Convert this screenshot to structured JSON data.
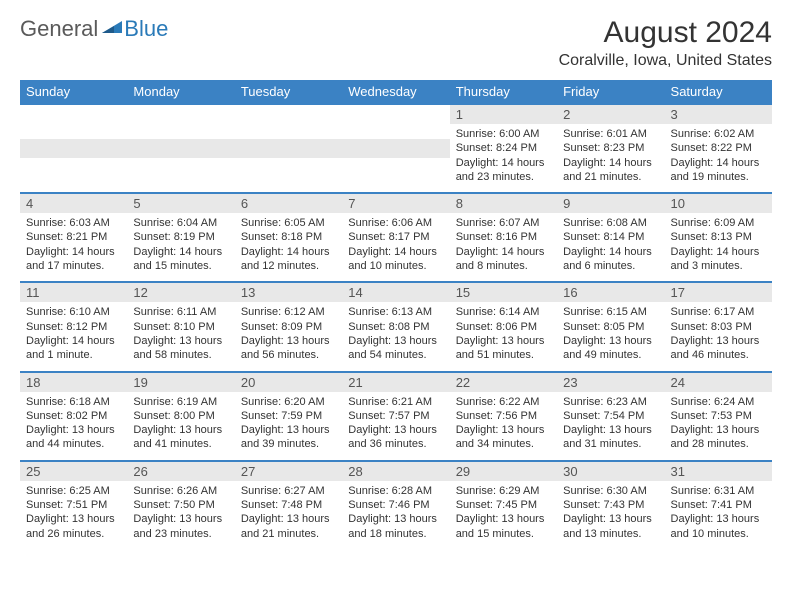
{
  "logo": {
    "general": "General",
    "blue": "Blue"
  },
  "title": "August 2024",
  "location": "Coralville, Iowa, United States",
  "weekdays": [
    "Sunday",
    "Monday",
    "Tuesday",
    "Wednesday",
    "Thursday",
    "Friday",
    "Saturday"
  ],
  "colors": {
    "header_bg": "#3b82c4",
    "header_text": "#ffffff",
    "daynum_bg": "#e8e8e8",
    "border": "#3b82c4",
    "logo_gray": "#5a5a5a",
    "logo_blue": "#2a7ab8"
  },
  "layout": {
    "first_weekday_index": 4,
    "days_in_month": 31,
    "font_family": "Arial",
    "title_fontsize": 30,
    "location_fontsize": 16,
    "weekday_fontsize": 13,
    "daynum_fontsize": 13,
    "content_fontsize": 11
  },
  "days": [
    {
      "n": "1",
      "sunrise": "Sunrise: 6:00 AM",
      "sunset": "Sunset: 8:24 PM",
      "d1": "Daylight: 14 hours",
      "d2": "and 23 minutes."
    },
    {
      "n": "2",
      "sunrise": "Sunrise: 6:01 AM",
      "sunset": "Sunset: 8:23 PM",
      "d1": "Daylight: 14 hours",
      "d2": "and 21 minutes."
    },
    {
      "n": "3",
      "sunrise": "Sunrise: 6:02 AM",
      "sunset": "Sunset: 8:22 PM",
      "d1": "Daylight: 14 hours",
      "d2": "and 19 minutes."
    },
    {
      "n": "4",
      "sunrise": "Sunrise: 6:03 AM",
      "sunset": "Sunset: 8:21 PM",
      "d1": "Daylight: 14 hours",
      "d2": "and 17 minutes."
    },
    {
      "n": "5",
      "sunrise": "Sunrise: 6:04 AM",
      "sunset": "Sunset: 8:19 PM",
      "d1": "Daylight: 14 hours",
      "d2": "and 15 minutes."
    },
    {
      "n": "6",
      "sunrise": "Sunrise: 6:05 AM",
      "sunset": "Sunset: 8:18 PM",
      "d1": "Daylight: 14 hours",
      "d2": "and 12 minutes."
    },
    {
      "n": "7",
      "sunrise": "Sunrise: 6:06 AM",
      "sunset": "Sunset: 8:17 PM",
      "d1": "Daylight: 14 hours",
      "d2": "and 10 minutes."
    },
    {
      "n": "8",
      "sunrise": "Sunrise: 6:07 AM",
      "sunset": "Sunset: 8:16 PM",
      "d1": "Daylight: 14 hours",
      "d2": "and 8 minutes."
    },
    {
      "n": "9",
      "sunrise": "Sunrise: 6:08 AM",
      "sunset": "Sunset: 8:14 PM",
      "d1": "Daylight: 14 hours",
      "d2": "and 6 minutes."
    },
    {
      "n": "10",
      "sunrise": "Sunrise: 6:09 AM",
      "sunset": "Sunset: 8:13 PM",
      "d1": "Daylight: 14 hours",
      "d2": "and 3 minutes."
    },
    {
      "n": "11",
      "sunrise": "Sunrise: 6:10 AM",
      "sunset": "Sunset: 8:12 PM",
      "d1": "Daylight: 14 hours",
      "d2": "and 1 minute."
    },
    {
      "n": "12",
      "sunrise": "Sunrise: 6:11 AM",
      "sunset": "Sunset: 8:10 PM",
      "d1": "Daylight: 13 hours",
      "d2": "and 58 minutes."
    },
    {
      "n": "13",
      "sunrise": "Sunrise: 6:12 AM",
      "sunset": "Sunset: 8:09 PM",
      "d1": "Daylight: 13 hours",
      "d2": "and 56 minutes."
    },
    {
      "n": "14",
      "sunrise": "Sunrise: 6:13 AM",
      "sunset": "Sunset: 8:08 PM",
      "d1": "Daylight: 13 hours",
      "d2": "and 54 minutes."
    },
    {
      "n": "15",
      "sunrise": "Sunrise: 6:14 AM",
      "sunset": "Sunset: 8:06 PM",
      "d1": "Daylight: 13 hours",
      "d2": "and 51 minutes."
    },
    {
      "n": "16",
      "sunrise": "Sunrise: 6:15 AM",
      "sunset": "Sunset: 8:05 PM",
      "d1": "Daylight: 13 hours",
      "d2": "and 49 minutes."
    },
    {
      "n": "17",
      "sunrise": "Sunrise: 6:17 AM",
      "sunset": "Sunset: 8:03 PM",
      "d1": "Daylight: 13 hours",
      "d2": "and 46 minutes."
    },
    {
      "n": "18",
      "sunrise": "Sunrise: 6:18 AM",
      "sunset": "Sunset: 8:02 PM",
      "d1": "Daylight: 13 hours",
      "d2": "and 44 minutes."
    },
    {
      "n": "19",
      "sunrise": "Sunrise: 6:19 AM",
      "sunset": "Sunset: 8:00 PM",
      "d1": "Daylight: 13 hours",
      "d2": "and 41 minutes."
    },
    {
      "n": "20",
      "sunrise": "Sunrise: 6:20 AM",
      "sunset": "Sunset: 7:59 PM",
      "d1": "Daylight: 13 hours",
      "d2": "and 39 minutes."
    },
    {
      "n": "21",
      "sunrise": "Sunrise: 6:21 AM",
      "sunset": "Sunset: 7:57 PM",
      "d1": "Daylight: 13 hours",
      "d2": "and 36 minutes."
    },
    {
      "n": "22",
      "sunrise": "Sunrise: 6:22 AM",
      "sunset": "Sunset: 7:56 PM",
      "d1": "Daylight: 13 hours",
      "d2": "and 34 minutes."
    },
    {
      "n": "23",
      "sunrise": "Sunrise: 6:23 AM",
      "sunset": "Sunset: 7:54 PM",
      "d1": "Daylight: 13 hours",
      "d2": "and 31 minutes."
    },
    {
      "n": "24",
      "sunrise": "Sunrise: 6:24 AM",
      "sunset": "Sunset: 7:53 PM",
      "d1": "Daylight: 13 hours",
      "d2": "and 28 minutes."
    },
    {
      "n": "25",
      "sunrise": "Sunrise: 6:25 AM",
      "sunset": "Sunset: 7:51 PM",
      "d1": "Daylight: 13 hours",
      "d2": "and 26 minutes."
    },
    {
      "n": "26",
      "sunrise": "Sunrise: 6:26 AM",
      "sunset": "Sunset: 7:50 PM",
      "d1": "Daylight: 13 hours",
      "d2": "and 23 minutes."
    },
    {
      "n": "27",
      "sunrise": "Sunrise: 6:27 AM",
      "sunset": "Sunset: 7:48 PM",
      "d1": "Daylight: 13 hours",
      "d2": "and 21 minutes."
    },
    {
      "n": "28",
      "sunrise": "Sunrise: 6:28 AM",
      "sunset": "Sunset: 7:46 PM",
      "d1": "Daylight: 13 hours",
      "d2": "and 18 minutes."
    },
    {
      "n": "29",
      "sunrise": "Sunrise: 6:29 AM",
      "sunset": "Sunset: 7:45 PM",
      "d1": "Daylight: 13 hours",
      "d2": "and 15 minutes."
    },
    {
      "n": "30",
      "sunrise": "Sunrise: 6:30 AM",
      "sunset": "Sunset: 7:43 PM",
      "d1": "Daylight: 13 hours",
      "d2": "and 13 minutes."
    },
    {
      "n": "31",
      "sunrise": "Sunrise: 6:31 AM",
      "sunset": "Sunset: 7:41 PM",
      "d1": "Daylight: 13 hours",
      "d2": "and 10 minutes."
    }
  ]
}
